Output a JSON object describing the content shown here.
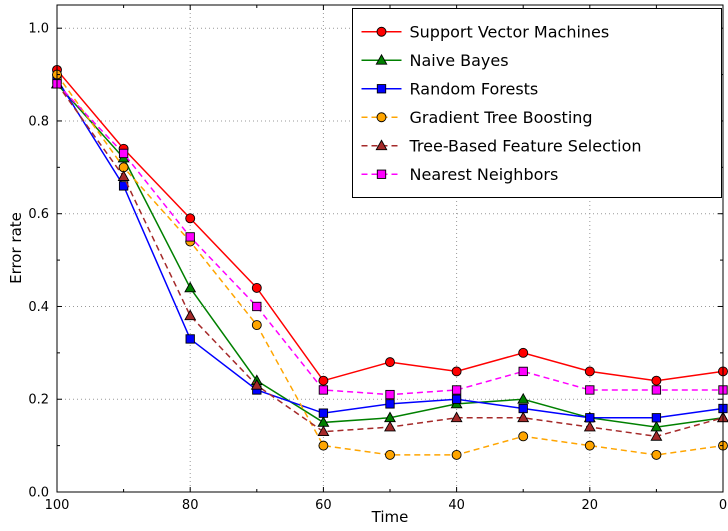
{
  "chart_data": {
    "type": "line",
    "title": "",
    "xlabel": "Time",
    "ylabel": "Error rate",
    "xlim": [
      100,
      0
    ],
    "ylim": [
      0,
      1.05
    ],
    "grid": true,
    "grid_color": "#999999",
    "legend_position": "upper right",
    "x": [
      100,
      90,
      80,
      70,
      60,
      50,
      40,
      30,
      20,
      10,
      0
    ],
    "x_major_ticks": [
      100,
      80,
      60,
      40,
      20,
      0
    ],
    "x_tick_labels": [
      "100",
      "80",
      "60",
      "40",
      "20",
      "0"
    ],
    "x_minor_ticks": [
      90,
      70,
      50,
      30,
      10
    ],
    "y_major_ticks": [
      0.0,
      0.2,
      0.4,
      0.6,
      0.8,
      1.0
    ],
    "y_tick_labels": [
      "0.0",
      "0.2",
      "0.4",
      "0.6",
      "0.8",
      "1.0"
    ],
    "y_minor_ticks": [
      0.1,
      0.3,
      0.5,
      0.7,
      0.9
    ],
    "series": [
      {
        "name": "Support Vector Machines",
        "color": "#ff0000",
        "linestyle": "solid",
        "marker": "circle",
        "values": [
          0.91,
          0.74,
          0.59,
          0.44,
          0.24,
          0.28,
          0.26,
          0.3,
          0.26,
          0.24,
          0.26
        ]
      },
      {
        "name": "Naive Bayes",
        "color": "#008000",
        "linestyle": "solid",
        "marker": "triangle",
        "values": [
          0.88,
          0.72,
          0.44,
          0.24,
          0.15,
          0.16,
          0.19,
          0.2,
          0.16,
          0.14,
          0.16
        ]
      },
      {
        "name": "Random Forests",
        "color": "#0000ff",
        "linestyle": "solid",
        "marker": "square",
        "values": [
          0.89,
          0.66,
          0.33,
          0.22,
          0.17,
          0.19,
          0.2,
          0.18,
          0.16,
          0.16,
          0.18
        ]
      },
      {
        "name": "Gradient Tree Boosting",
        "color": "#ffa500",
        "linestyle": "dashed",
        "marker": "circle",
        "values": [
          0.9,
          0.7,
          0.54,
          0.36,
          0.1,
          0.08,
          0.08,
          0.12,
          0.1,
          0.08,
          0.1
        ]
      },
      {
        "name": "Tree-Based Feature Selection",
        "color": "#a52a2a",
        "linestyle": "dashed",
        "marker": "triangle",
        "values": [
          0.88,
          0.68,
          0.38,
          0.23,
          0.13,
          0.14,
          0.16,
          0.16,
          0.14,
          0.12,
          0.16
        ]
      },
      {
        "name": "Nearest Neighbors",
        "color": "#ff00ff",
        "linestyle": "dashed",
        "marker": "square",
        "values": [
          0.88,
          0.73,
          0.55,
          0.4,
          0.22,
          0.21,
          0.22,
          0.26,
          0.22,
          0.22,
          0.22
        ]
      }
    ]
  }
}
